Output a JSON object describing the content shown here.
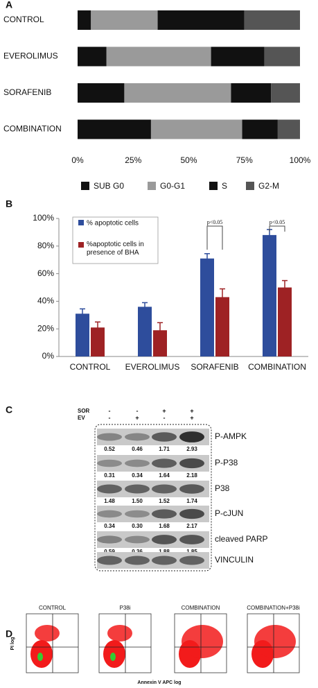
{
  "chart_data": [
    {
      "type": "bar",
      "orientation": "horizontal",
      "stacked": true,
      "panel": "A",
      "categories": [
        "CONTROL",
        "EVEROLIMUS",
        "SORAFENIB",
        "COMBINATION"
      ],
      "series": [
        {
          "name": "SUB G0",
          "color": "#111111",
          "values": [
            6,
            13,
            21,
            33
          ]
        },
        {
          "name": "G0-G1",
          "color": "#9a9a9a",
          "values": [
            30,
            47,
            48,
            41
          ]
        },
        {
          "name": "S",
          "color": "#111111",
          "values": [
            39,
            24,
            18,
            16
          ]
        },
        {
          "name": "G2-M",
          "color": "#555555",
          "values": [
            25,
            16,
            13,
            10
          ]
        }
      ],
      "xlim": [
        0,
        100
      ],
      "xticks": [
        {
          "value": 0,
          "label": "0%"
        },
        {
          "value": 25,
          "label": "25%"
        },
        {
          "value": 50,
          "label": "50%"
        },
        {
          "value": 75,
          "label": "75%"
        },
        {
          "value": 100,
          "label": "100%"
        }
      ]
    },
    {
      "type": "bar",
      "panel": "B",
      "categories": [
        "CONTROL",
        "EVEROLIMUS",
        "SORAFENIB",
        "COMBINATION"
      ],
      "series": [
        {
          "name": "% apoptotic cells",
          "color": "#2e4d9c",
          "values": [
            31,
            36,
            71,
            88
          ],
          "errors": [
            3.5,
            3,
            3.5,
            4
          ]
        },
        {
          "name": "%apoptotic cells in presence of BHA",
          "color": "#9e2224",
          "values": [
            21,
            19,
            43,
            50
          ],
          "errors": [
            4,
            5.5,
            6,
            5
          ]
        }
      ],
      "ylim": [
        0,
        100
      ],
      "yticks": [
        {
          "value": 0,
          "label": "0%"
        },
        {
          "value": 20,
          "label": "20%"
        },
        {
          "value": 40,
          "label": "40%"
        },
        {
          "value": 60,
          "label": "60%"
        },
        {
          "value": 80,
          "label": "80%"
        },
        {
          "value": 100,
          "label": "100%"
        }
      ],
      "annotations": [
        "p<0.05",
        "p<0.05"
      ]
    }
  ],
  "blot": {
    "panel": "C",
    "treatments": [
      {
        "label": "SOR",
        "signs": [
          "-",
          "-",
          "+",
          "+"
        ]
      },
      {
        "label": "EV",
        "signs": [
          "-",
          "+",
          "-",
          "+"
        ]
      }
    ],
    "rows": [
      {
        "label": "P-AMPK",
        "quant": [
          "0.52",
          "0.46",
          "1.71",
          "2.93"
        ]
      },
      {
        "label": "P-P38",
        "quant": [
          "0.31",
          "0.34",
          "1.64",
          "2.18"
        ]
      },
      {
        "label": "P38",
        "quant": [
          "1.48",
          "1.50",
          "1.52",
          "1.74"
        ]
      },
      {
        "label": "P-cJUN",
        "quant": [
          "0.34",
          "0.30",
          "1.68",
          "2.17"
        ]
      },
      {
        "label": "cleaved PARP",
        "quant": [
          "0.59",
          "0.36",
          "1.88",
          "1.85"
        ]
      },
      {
        "label": "VINCULIN"
      }
    ]
  },
  "flow": {
    "panel": "D",
    "y_label": "PI log",
    "x_label": "Annexin V APC log",
    "plots": [
      "CONTROL",
      "P38i",
      "COMBINATION",
      "COMBINATION+P38i"
    ]
  }
}
